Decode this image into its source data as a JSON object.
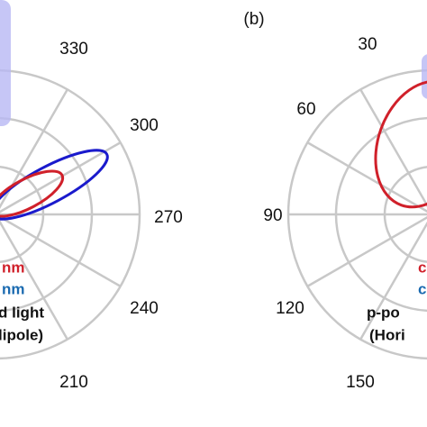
{
  "panels": [
    {
      "angle_labels": [
        "330",
        "300",
        "270",
        "240",
        "210"
      ],
      "legend": [
        "nm",
        "nm",
        "d light",
        "lipole)"
      ]
    },
    {
      "panel_label": "(b)",
      "angle_labels": [
        "30",
        "60",
        "90",
        "120",
        "150"
      ],
      "legend": [
        "c",
        "c",
        "p-po",
        "(Hori"
      ]
    }
  ]
}
